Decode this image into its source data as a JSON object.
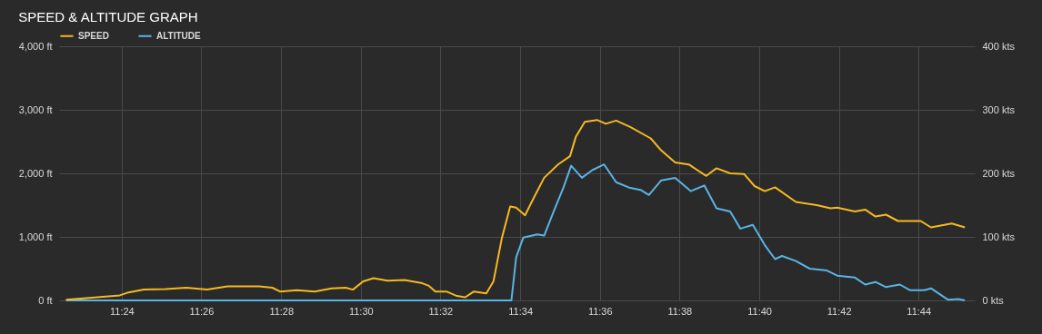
{
  "chart_data": {
    "type": "line",
    "title": "SPEED & ALTITUDE GRAPH",
    "xlim": [
      11.3738,
      11.7568
    ],
    "xticks": [
      {
        "value": 11.4,
        "label": "11:24"
      },
      {
        "value": 11.4333,
        "label": "11:26"
      },
      {
        "value": 11.4667,
        "label": "11:28"
      },
      {
        "value": 11.5,
        "label": "11:30"
      },
      {
        "value": 11.5333,
        "label": "11:32"
      },
      {
        "value": 11.5667,
        "label": "11:34"
      },
      {
        "value": 11.6,
        "label": "11:36"
      },
      {
        "value": 11.6333,
        "label": "11:38"
      },
      {
        "value": 11.6667,
        "label": "11:40"
      },
      {
        "value": 11.7,
        "label": "11:42"
      },
      {
        "value": 11.7333,
        "label": "11:44"
      }
    ],
    "ylim": [
      0,
      4000
    ],
    "yticks": [
      {
        "value": 0,
        "label": "0 ft"
      },
      {
        "value": 1000,
        "label": "1,000 ft"
      },
      {
        "value": 2000,
        "label": "2,000 ft"
      },
      {
        "value": 3000,
        "label": "3,000 ft"
      },
      {
        "value": 4000,
        "label": "4,000 ft"
      }
    ],
    "y2lim": [
      0,
      400
    ],
    "y2ticks": [
      {
        "value": 0,
        "label": "0 kts"
      },
      {
        "value": 100,
        "label": "100 kts"
      },
      {
        "value": 200,
        "label": "200 kts"
      },
      {
        "value": 300,
        "label": "300 kts"
      },
      {
        "value": 400,
        "label": "400 kts"
      }
    ],
    "grid": true,
    "legend": "top left",
    "marker": "none",
    "line_style": "solid",
    "series": [
      {
        "name": "SPEED",
        "color": "#f5b921",
        "axis": "y2",
        "x": [
          11.3767,
          11.3863,
          11.3992,
          11.4023,
          11.4093,
          11.4183,
          11.427,
          11.4357,
          11.4443,
          11.4575,
          11.463,
          11.4662,
          11.4733,
          11.4807,
          11.4878,
          11.4937,
          11.4967,
          11.501,
          11.5053,
          11.5112,
          11.5183,
          11.5257,
          11.5285,
          11.5312,
          11.5358,
          11.5402,
          11.5437,
          11.5473,
          11.5525,
          11.5555,
          11.559,
          11.5625,
          11.565,
          11.5687,
          11.5723,
          11.5767,
          11.5825,
          11.5875,
          11.59,
          11.5937,
          11.5988,
          11.6025,
          11.6068,
          11.6127,
          11.6213,
          11.6257,
          11.6315,
          11.6372,
          11.6445,
          11.6488,
          11.6545,
          11.6603,
          11.6647,
          11.669,
          11.6733,
          11.682,
          11.6907,
          11.6965,
          11.6993,
          11.7067,
          11.711,
          11.7153,
          11.7197,
          11.7247,
          11.7342,
          11.7385,
          11.7472,
          11.7527
        ],
        "values": [
          1,
          4,
          8,
          12,
          17,
          18,
          20,
          17,
          22,
          22,
          20,
          14,
          16,
          14,
          19,
          20,
          17,
          30,
          35,
          31,
          32,
          27,
          23,
          14,
          14,
          7,
          5,
          14,
          11,
          30,
          98,
          148,
          146,
          134,
          161,
          193,
          214,
          227,
          258,
          281,
          284,
          278,
          283,
          273,
          255,
          236,
          217,
          214,
          196,
          208,
          200,
          199,
          180,
          172,
          178,
          155,
          150,
          145,
          146,
          140,
          143,
          132,
          135,
          125,
          125,
          115,
          121,
          115
        ]
      },
      {
        "name": "ALTITUDE",
        "color": "#5ab4e5",
        "axis": "y",
        "x": [
          11.3767,
          11.563,
          11.565,
          11.568,
          11.5738,
          11.5767,
          11.581,
          11.5847,
          11.588,
          11.5925,
          11.5968,
          11.6018,
          11.6068,
          11.6127,
          11.617,
          11.6205,
          11.6257,
          11.6315,
          11.638,
          11.6437,
          11.6488,
          11.6545,
          11.6588,
          11.664,
          11.669,
          11.6733,
          11.6762,
          11.682,
          11.6878,
          11.695,
          11.6993,
          11.7067,
          11.711,
          11.7153,
          11.7197,
          11.7255,
          11.7298,
          11.7357,
          11.7385,
          11.7457,
          11.75,
          11.7527
        ],
        "values": [
          0,
          0,
          680,
          990,
          1040,
          1020,
          1430,
          1770,
          2120,
          1930,
          2050,
          2140,
          1860,
          1770,
          1740,
          1660,
          1890,
          1930,
          1720,
          1810,
          1450,
          1400,
          1130,
          1190,
          870,
          650,
          700,
          620,
          500,
          470,
          390,
          360,
          250,
          290,
          210,
          250,
          160,
          160,
          190,
          10,
          20,
          0
        ]
      }
    ]
  }
}
